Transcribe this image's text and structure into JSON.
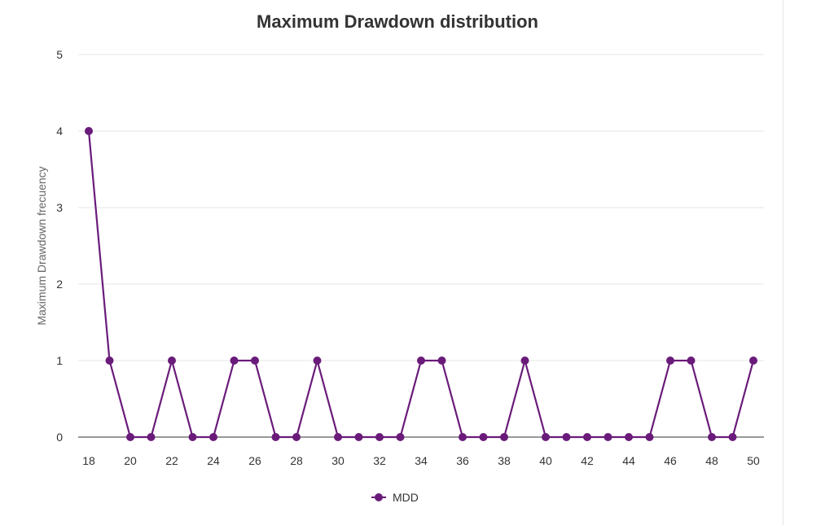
{
  "chart_data": {
    "type": "line",
    "title": "Maximum Drawdown distribution",
    "xlabel": "",
    "ylabel": "Maximum Drawdown frecuency",
    "x": [
      18,
      19,
      20,
      21,
      22,
      23,
      24,
      25,
      26,
      27,
      28,
      29,
      30,
      31,
      32,
      33,
      34,
      35,
      36,
      37,
      38,
      39,
      40,
      41,
      42,
      43,
      44,
      45,
      46,
      47,
      48,
      49,
      50
    ],
    "x_ticks": [
      "18",
      "20",
      "22",
      "24",
      "26",
      "28",
      "30",
      "32",
      "34",
      "36",
      "38",
      "40",
      "42",
      "44",
      "46",
      "48",
      "50"
    ],
    "y_ticks": [
      "0",
      "1",
      "2",
      "3",
      "4",
      "5"
    ],
    "ylim": [
      0,
      5
    ],
    "xlim": [
      18,
      50
    ],
    "grid": true,
    "legend_position": "bottom",
    "series": [
      {
        "name": "MDD",
        "color": "#6a1b7a",
        "values": [
          4,
          1,
          0,
          0,
          1,
          0,
          0,
          1,
          1,
          0,
          0,
          1,
          0,
          0,
          0,
          0,
          1,
          1,
          0,
          0,
          0,
          1,
          0,
          0,
          0,
          0,
          0,
          0,
          1,
          1,
          0,
          0,
          1
        ]
      }
    ]
  }
}
